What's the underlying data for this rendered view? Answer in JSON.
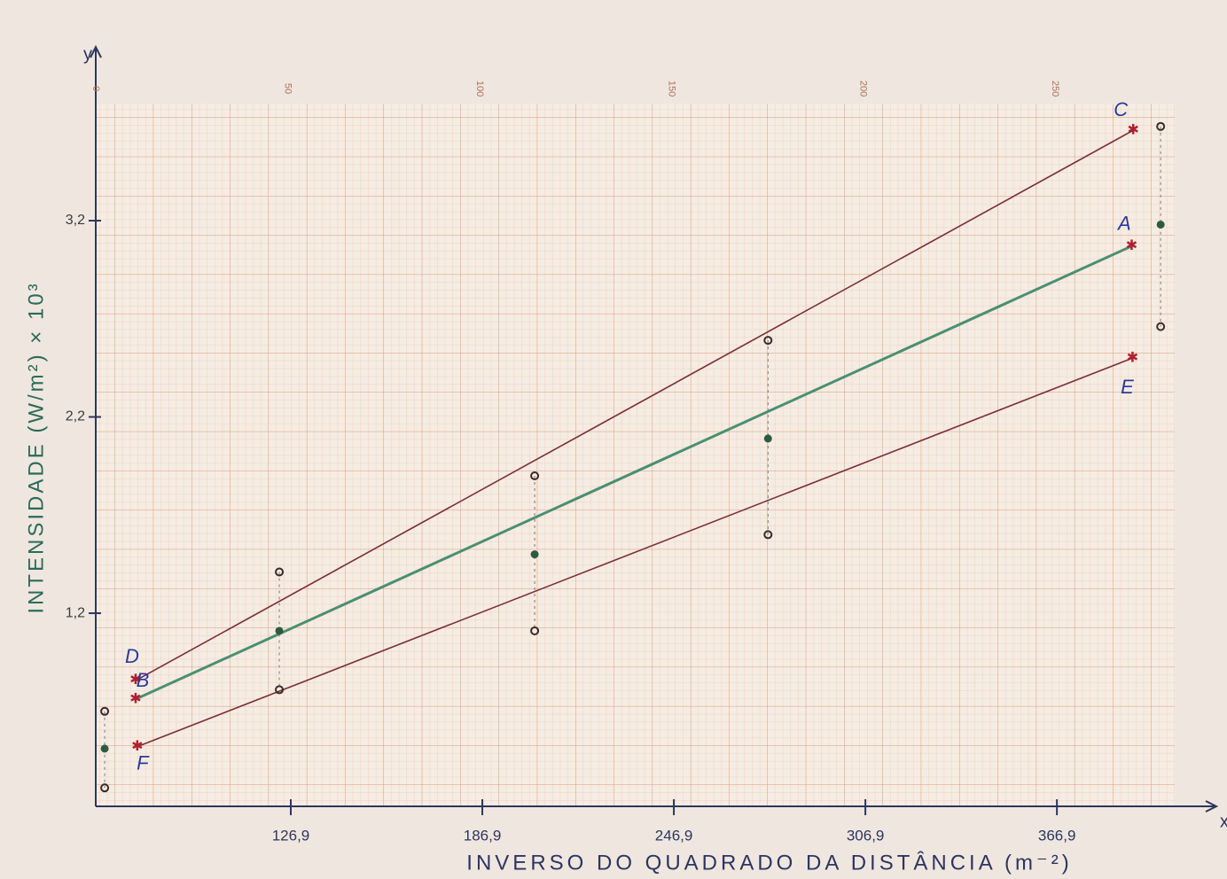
{
  "chart_data": {
    "type": "scatter",
    "x_label": "INVERSO DO QUADRADO DA DISTÂNCIA (m⁻²)",
    "y_label": "INTENSIDADE (W/m²) × 10³",
    "x_axis_letter": "x",
    "y_axis_letter": "y",
    "xlim": [
      65.8,
      403.8
    ],
    "ylim": [
      0.216,
      3.796
    ],
    "xticks": [
      {
        "value": 126.9,
        "label": "126,9"
      },
      {
        "value": 186.9,
        "label": "186,9"
      },
      {
        "value": 246.9,
        "label": "246,9"
      },
      {
        "value": 306.9,
        "label": "306,9"
      },
      {
        "value": 366.9,
        "label": "366,9"
      }
    ],
    "yticks": [
      {
        "value": 1.2,
        "label": "1,2"
      },
      {
        "value": 2.2,
        "label": "2,2"
      },
      {
        "value": 3.2,
        "label": "3,2"
      }
    ],
    "x2lim": [
      0,
      281.2
    ],
    "x2ticks": [
      0,
      50,
      100,
      150,
      200,
      250
    ],
    "grid": true,
    "series": [
      {
        "color": "#3a2a2a",
        "x": [
          68.6,
          123.3,
          203.3,
          276.4,
          399.4
        ],
        "values": [
          0.7,
          1.41,
          1.9,
          2.59,
          3.68
        ]
      },
      {
        "color": "#2f5a40",
        "x": [
          68.6,
          123.3,
          203.3,
          276.4,
          399.4
        ],
        "values": [
          0.51,
          1.11,
          1.5,
          2.09,
          3.18
        ]
      },
      {
        "color": "#3a2a2a",
        "x": [
          68.6,
          123.3,
          203.3,
          276.4,
          399.4
        ],
        "values": [
          0.31,
          0.81,
          1.11,
          1.6,
          2.66
        ]
      }
    ],
    "lines": [
      {
        "labels": [
          "D",
          "C"
        ],
        "color": "#7a2e3a",
        "x": [
          78.3,
          390.8
        ],
        "values": [
          0.857,
          3.66
        ]
      },
      {
        "labels": [
          "B",
          "A"
        ],
        "color": "#4a8f72",
        "x": [
          78.3,
          390.3
        ],
        "values": [
          0.762,
          3.07
        ]
      },
      {
        "labels": [
          "F",
          "E"
        ],
        "color": "#7a2e3a",
        "x": [
          78.8,
          390.6
        ],
        "values": [
          0.52,
          2.5
        ]
      }
    ]
  }
}
